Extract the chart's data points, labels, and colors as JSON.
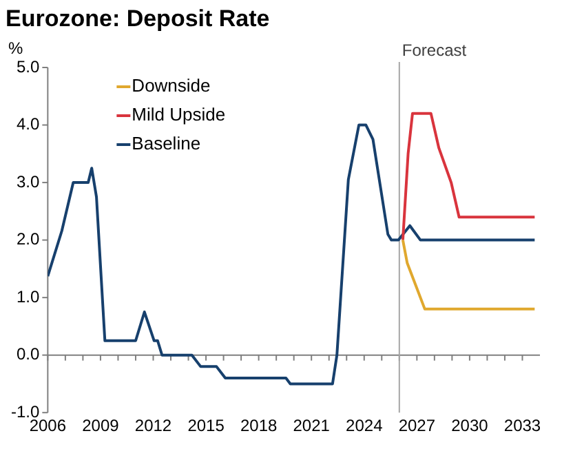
{
  "chart_data": {
    "type": "line",
    "title": "Eurozone: Deposit Rate",
    "ylabel": "%",
    "xlim": [
      2006,
      2034
    ],
    "ylim": [
      -1,
      5
    ],
    "xticks": [
      2006,
      {
        "value": 2007,
        "label": null
      },
      {
        "value": 2008,
        "label": null
      },
      2009,
      {
        "value": 2010,
        "label": null
      },
      {
        "value": 2011,
        "label": null
      },
      2012,
      {
        "value": 2013,
        "label": null
      },
      {
        "value": 2014,
        "label": null
      },
      2015,
      {
        "value": 2016,
        "label": null
      },
      {
        "value": 2017,
        "label": null
      },
      2018,
      {
        "value": 2019,
        "label": null
      },
      {
        "value": 2020,
        "label": null
      },
      2021,
      {
        "value": 2022,
        "label": null
      },
      {
        "value": 2023,
        "label": null
      },
      2024,
      {
        "value": 2025,
        "label": null
      },
      {
        "value": 2026,
        "label": null
      },
      2027,
      {
        "value": 2028,
        "label": null
      },
      {
        "value": 2029,
        "label": null
      },
      2030,
      {
        "value": 2031,
        "label": null
      },
      {
        "value": 2032,
        "label": null
      },
      2033
    ],
    "yticks": [
      {
        "value": -1,
        "label": "-1.0"
      },
      {
        "value": 0,
        "label": "0.0"
      },
      {
        "value": 1,
        "label": "1.0"
      },
      {
        "value": 2,
        "label": "2.0"
      },
      {
        "value": 3,
        "label": "3.0"
      },
      {
        "value": 4,
        "label": "4.0"
      },
      {
        "value": 5,
        "label": "5.0"
      }
    ],
    "grid": false,
    "legend": "top left",
    "marker": "none",
    "line_style": "solid",
    "ref_lines": [
      {
        "axis": "x",
        "value": 2026,
        "label": "Forecast",
        "color": "#a6a6a6"
      }
    ],
    "series": [
      {
        "name": "Downside",
        "color": "#e0a82e",
        "x": [
          2026.2,
          2026.45,
          2027.45,
          2033.7
        ],
        "values": [
          2.0,
          1.6,
          0.8,
          0.8
        ]
      },
      {
        "name": "Mild Upside",
        "color": "#d9343d",
        "x": [
          2026.2,
          2026.5,
          2026.75,
          2027.8,
          2028.25,
          2028.95,
          2029.4,
          2033.7
        ],
        "values": [
          2.0,
          3.5,
          4.2,
          4.2,
          3.6,
          3.0,
          2.4,
          2.4
        ]
      },
      {
        "name": "Baseline",
        "color": "#17406d",
        "x": [
          2006.0,
          2006.8,
          2007.45,
          2008.3,
          2008.5,
          2008.77,
          2009.25,
          2011.0,
          2011.5,
          2012.05,
          2012.25,
          2012.5,
          2014.2,
          2014.7,
          2015.6,
          2016.1,
          2019.55,
          2019.8,
          2022.2,
          2022.45,
          2023.1,
          2023.7,
          2024.1,
          2024.5,
          2025.35,
          2025.55,
          2025.95,
          2026.6,
          2027.2,
          2033.7
        ],
        "values": [
          1.37,
          2.16,
          3.0,
          3.0,
          3.25,
          2.75,
          0.25,
          0.25,
          0.75,
          0.25,
          0.25,
          0.0,
          0.0,
          -0.2,
          -0.2,
          -0.4,
          -0.4,
          -0.5,
          -0.5,
          0.0,
          3.05,
          4.0,
          4.0,
          3.75,
          2.1,
          2.0,
          2.0,
          2.25,
          2.0,
          2.0
        ]
      }
    ]
  }
}
